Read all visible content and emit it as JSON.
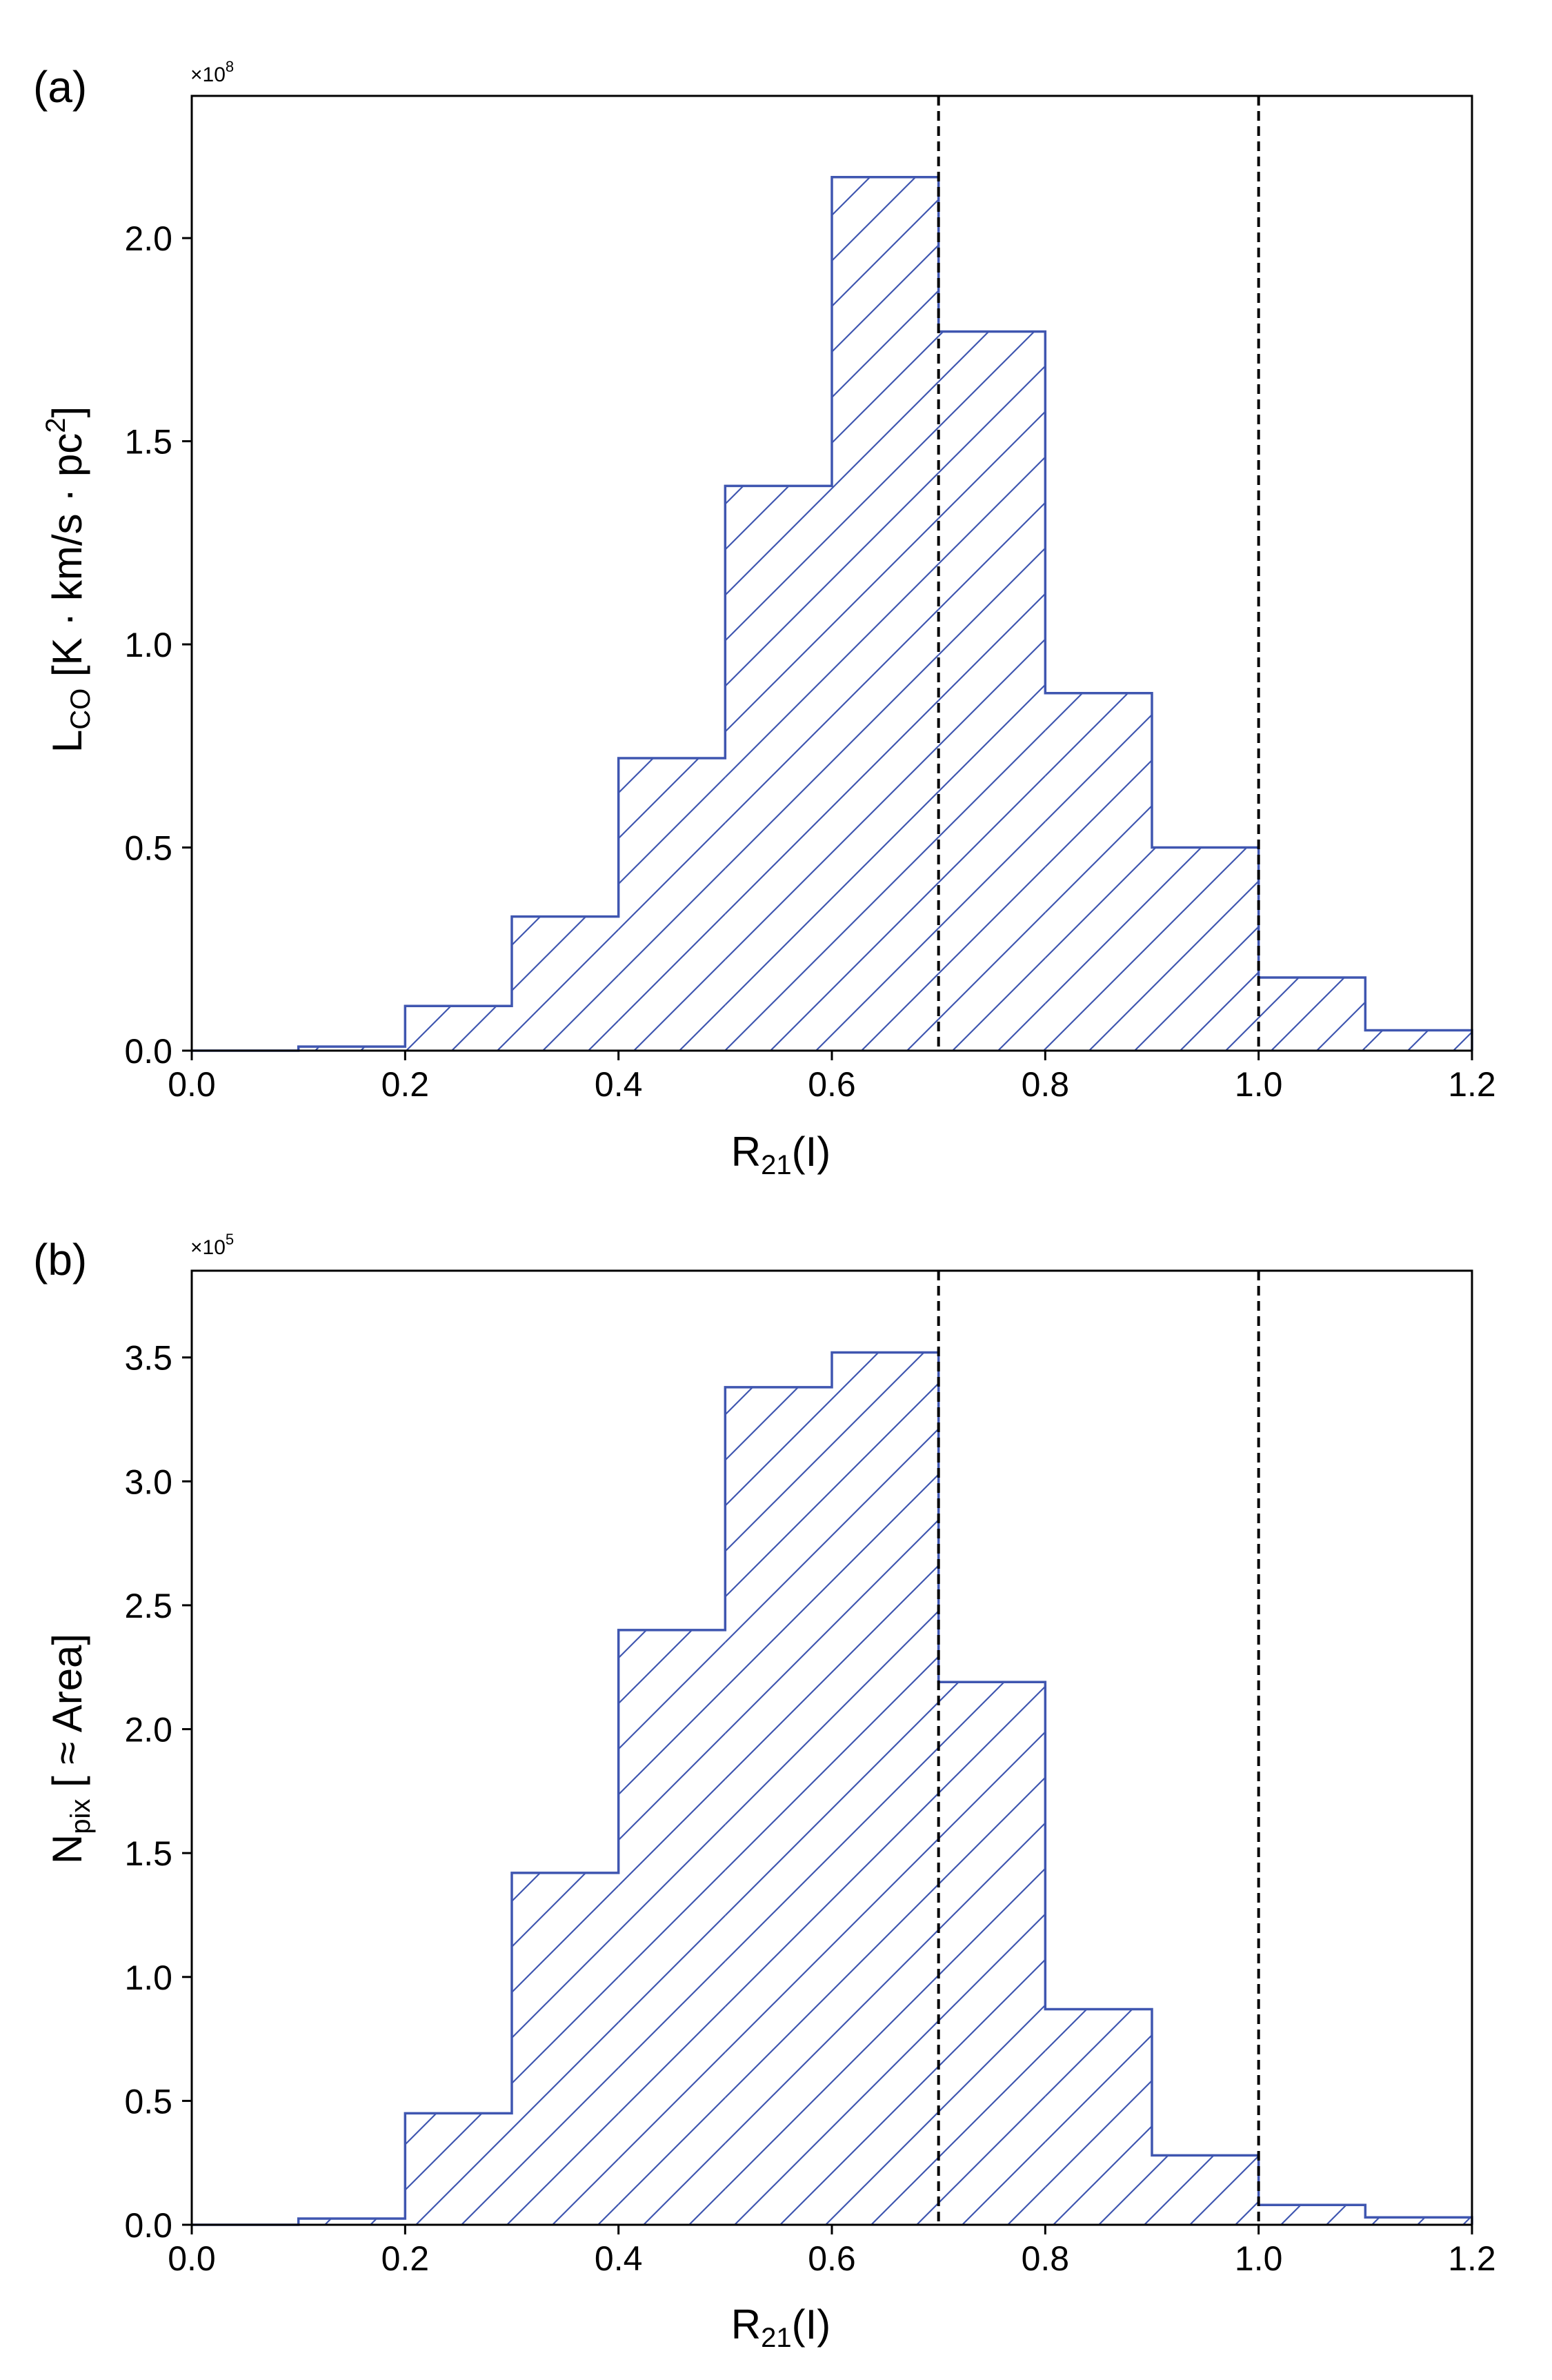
{
  "chart_data": [
    {
      "type": "bar",
      "panel_label": "(a)",
      "bin_edges": [
        0.0,
        0.1,
        0.2,
        0.3,
        0.4,
        0.5,
        0.6,
        0.7,
        0.8,
        0.9,
        1.0,
        1.1,
        1.2
      ],
      "values": [
        0.0,
        0.01,
        0.11,
        0.33,
        0.72,
        1.39,
        2.15,
        1.77,
        0.88,
        0.5,
        0.18,
        0.05
      ],
      "value_scale": "×10^8",
      "offset_text": {
        "base": "×10",
        "exp": "8"
      },
      "xlim": [
        0.0,
        1.2
      ],
      "ylim": [
        0.0,
        2.35
      ],
      "xticks": [
        "0.0",
        "0.2",
        "0.4",
        "0.6",
        "0.8",
        "1.0",
        "1.2"
      ],
      "xtick_values": [
        0.0,
        0.2,
        0.4,
        0.6,
        0.8,
        1.0,
        1.2
      ],
      "yticks": [
        "0.0",
        "0.5",
        "1.0",
        "1.5",
        "2.0"
      ],
      "ytick_values": [
        0.0,
        0.5,
        1.0,
        1.5,
        2.0
      ],
      "xlabel": {
        "main": "R",
        "sub": "21",
        "rest": "(I)"
      },
      "ylabel": {
        "main": "L",
        "sub": "CO",
        "rest1": " [K · km/s · pc",
        "sup": "2",
        "rest2": "]"
      },
      "vlines": [
        0.7,
        1.0
      ],
      "hatch": "/",
      "edge_color": "#3f56b0",
      "vline_color": "#000000"
    },
    {
      "type": "bar",
      "panel_label": "(b)",
      "bin_edges": [
        0.0,
        0.1,
        0.2,
        0.3,
        0.4,
        0.5,
        0.6,
        0.7,
        0.8,
        0.9,
        1.0,
        1.1,
        1.2
      ],
      "values": [
        0.0,
        0.025,
        0.45,
        1.42,
        2.4,
        3.38,
        3.52,
        2.19,
        0.87,
        0.28,
        0.08,
        0.03
      ],
      "value_scale": "×10^5",
      "offset_text": {
        "base": "×10",
        "exp": "5"
      },
      "xlim": [
        0.0,
        1.2
      ],
      "ylim": [
        0.0,
        3.85
      ],
      "xticks": [
        "0.0",
        "0.2",
        "0.4",
        "0.6",
        "0.8",
        "1.0",
        "1.2"
      ],
      "xtick_values": [
        0.0,
        0.2,
        0.4,
        0.6,
        0.8,
        1.0,
        1.2
      ],
      "yticks": [
        "0.0",
        "0.5",
        "1.0",
        "1.5",
        "2.0",
        "2.5",
        "3.0",
        "3.5"
      ],
      "ytick_values": [
        0.0,
        0.5,
        1.0,
        1.5,
        2.0,
        2.5,
        3.0,
        3.5
      ],
      "xlabel": {
        "main": "R",
        "sub": "21",
        "rest": "(I)"
      },
      "ylabel": {
        "main": "N",
        "sub": "pix",
        "rest1": " [ ≈ Area]",
        "sup": "",
        "rest2": ""
      },
      "vlines": [
        0.7,
        1.0
      ],
      "hatch": "/",
      "edge_color": "#3f56b0",
      "vline_color": "#000000"
    }
  ]
}
